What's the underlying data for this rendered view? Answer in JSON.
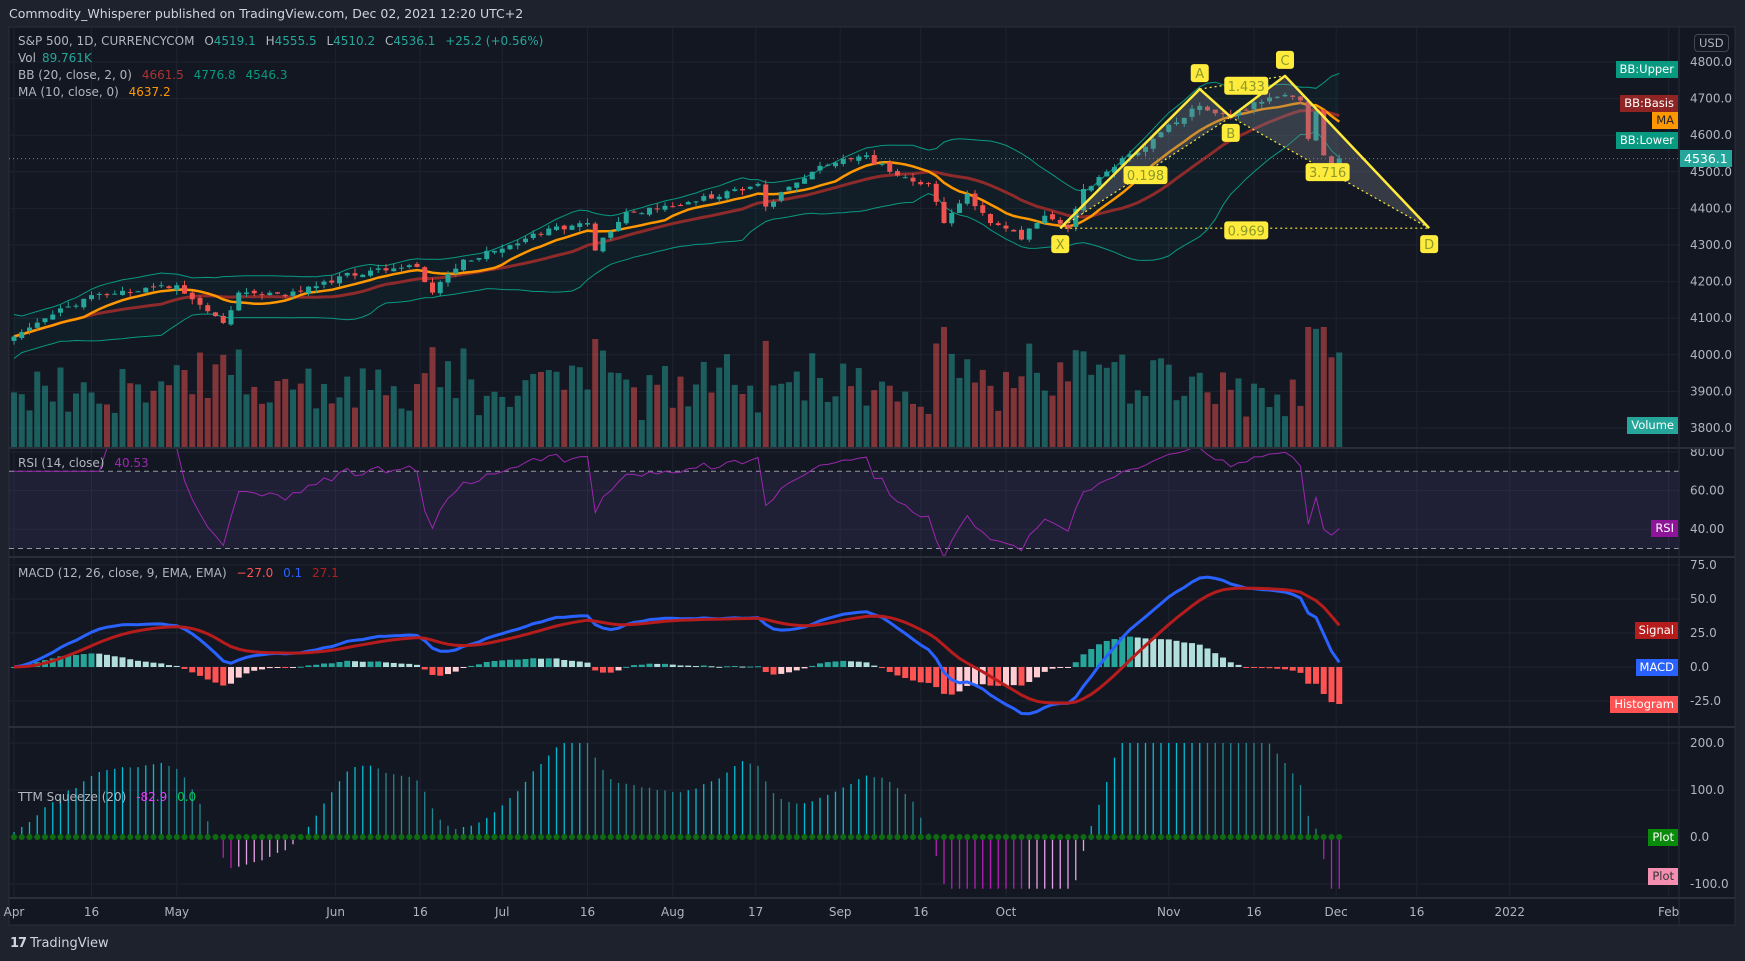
{
  "header": {
    "title": "Commodity_Whisperer published on TradingView.com, Dec 02, 2021 12:20 UTC+2"
  },
  "legend": {
    "symbol": "S&P 500, 1D, CURRENCYCOM",
    "o_label": "O",
    "o": "4519.1",
    "h_label": "H",
    "h": "4555.5",
    "l_label": "L",
    "l": "4510.2",
    "c_label": "C",
    "c": "4536.1",
    "change": "+25.2 (+0.56%)",
    "vol_label": "Vol",
    "vol": "89.761K",
    "bb_label": "BB (20, close, 2, 0)",
    "bb_basis": "4661.5",
    "bb_upper": "4776.8",
    "bb_lower": "4546.3",
    "ma_label": "MA (10, close, 0)",
    "ma": "4637.2"
  },
  "price_axis": {
    "currency": "USD",
    "ticks": [
      "4800.0",
      "4700.0",
      "4600.0",
      "4500.0",
      "4400.0",
      "4300.0",
      "4200.0",
      "4100.0",
      "4000.0",
      "3900.0",
      "3800.0"
    ],
    "last": "4536.1",
    "tags": {
      "upper": "BB:Upper",
      "basis": "BB:Basis",
      "ma": "MA",
      "lower": "BB:Lower",
      "volume": "Volume"
    }
  },
  "rsi": {
    "label": "RSI (14, close)",
    "value": "40.53",
    "tag": "RSI",
    "ticks": [
      "80.00",
      "60.00",
      "40.00"
    ],
    "upper_band": 70,
    "lower_band": 30
  },
  "macd": {
    "label": "MACD (12, 26, close, 9, EMA, EMA)",
    "hist": "−27.0",
    "macd": "0.1",
    "signal": "27.1",
    "tags": {
      "signal": "Signal",
      "macd": "MACD",
      "histogram": "Histogram"
    },
    "ticks": [
      "75.0",
      "50.0",
      "25.0",
      "0.0",
      "-25.0"
    ]
  },
  "ttm": {
    "label": "TTM Squeeze (20)",
    "value": "-82.9",
    "value2": "0.0",
    "tags": [
      "Plot",
      "Plot"
    ],
    "ticks": [
      "200.0",
      "100.0",
      "0.0",
      "-100.0"
    ]
  },
  "time_axis": [
    {
      "label": "Apr",
      "bar": 0
    },
    {
      "label": "16",
      "bar": 10
    },
    {
      "label": "May",
      "bar": 21
    },
    {
      "label": "Jun",
      "bar": 41.5
    },
    {
      "label": "16",
      "bar": 52.4
    },
    {
      "label": "Jul",
      "bar": 63
    },
    {
      "label": "16",
      "bar": 74
    },
    {
      "label": "Aug",
      "bar": 85
    },
    {
      "label": "17",
      "bar": 95.7
    },
    {
      "label": "Sep",
      "bar": 106.6
    },
    {
      "label": "16",
      "bar": 117
    },
    {
      "label": "Oct",
      "bar": 128
    },
    {
      "label": "Nov",
      "bar": 149
    },
    {
      "label": "16",
      "bar": 160
    },
    {
      "label": "Dec",
      "bar": 170.6
    },
    {
      "label": "16",
      "bar": 181
    },
    {
      "label": "2022",
      "bar": 193
    },
    {
      "label": "Feb",
      "bar": 213.5
    }
  ],
  "footer": {
    "logo": "17",
    "brand": "TradingView"
  },
  "colors": {
    "up": "#26a69a",
    "down": "#ef5350",
    "ma": "#ff9800",
    "bb_basis": "#8e2a2a",
    "bb_band": "#089981",
    "rsi": "#9c27b0",
    "macd": "#2962ff",
    "signal": "#b71c1c",
    "pattern": "#ffeb3b",
    "bg": "#131722"
  },
  "chart_data": {
    "type": "candlestick",
    "x_unit": "trading day index (0 = Apr 1, 2021)",
    "anchors_close": [
      [
        0,
        4050
      ],
      [
        5,
        4110
      ],
      [
        10,
        4163
      ],
      [
        15,
        4170
      ],
      [
        18,
        4185
      ],
      [
        21,
        4190
      ],
      [
        27,
        4087
      ],
      [
        29,
        4170
      ],
      [
        35,
        4160
      ],
      [
        40,
        4200
      ],
      [
        46,
        4230
      ],
      [
        52,
        4240
      ],
      [
        54,
        4170
      ],
      [
        58,
        4260
      ],
      [
        63,
        4290
      ],
      [
        69,
        4345
      ],
      [
        74,
        4360
      ],
      [
        75,
        4285
      ],
      [
        79,
        4390
      ],
      [
        85,
        4405
      ],
      [
        96,
        4467
      ],
      [
        97,
        4405
      ],
      [
        103,
        4500
      ],
      [
        107,
        4535
      ],
      [
        110,
        4545
      ],
      [
        113,
        4500
      ],
      [
        118,
        4467
      ],
      [
        120,
        4360
      ],
      [
        123,
        4440
      ],
      [
        126,
        4360
      ],
      [
        128,
        4345
      ],
      [
        130,
        4315
      ],
      [
        133,
        4380
      ],
      [
        136,
        4345
      ],
      [
        138,
        4453
      ],
      [
        142,
        4513
      ],
      [
        147,
        4590
      ],
      [
        150,
        4635
      ],
      [
        153,
        4680
      ],
      [
        155,
        4660
      ],
      [
        157,
        4650
      ],
      [
        160,
        4690
      ],
      [
        164,
        4710
      ],
      [
        166,
        4695
      ],
      [
        167,
        4590
      ],
      [
        168,
        4665
      ],
      [
        169,
        4545
      ],
      [
        170,
        4515
      ],
      [
        171,
        4536.1
      ]
    ],
    "pattern": {
      "points": [
        {
          "label": "X",
          "bar": 135,
          "price": 4346,
          "pos": "below"
        },
        {
          "label": "A",
          "bar": 153,
          "price": 4726,
          "pos": "above"
        },
        {
          "label": "B",
          "bar": 157,
          "price": 4650,
          "pos": "below"
        },
        {
          "label": "C",
          "bar": 164,
          "price": 4762,
          "pos": "above"
        },
        {
          "label": "D",
          "bar": 182.6,
          "price": 4346,
          "pos": "below"
        }
      ],
      "ratios": [
        {
          "label": "1.433",
          "bar": 159,
          "price": 4735
        },
        {
          "label": "0.198",
          "bar": 146,
          "price": 4491
        },
        {
          "label": "0.969",
          "bar": 159,
          "price": 4340
        },
        {
          "label": "3.716",
          "bar": 169.5,
          "price": 4499
        }
      ]
    }
  }
}
